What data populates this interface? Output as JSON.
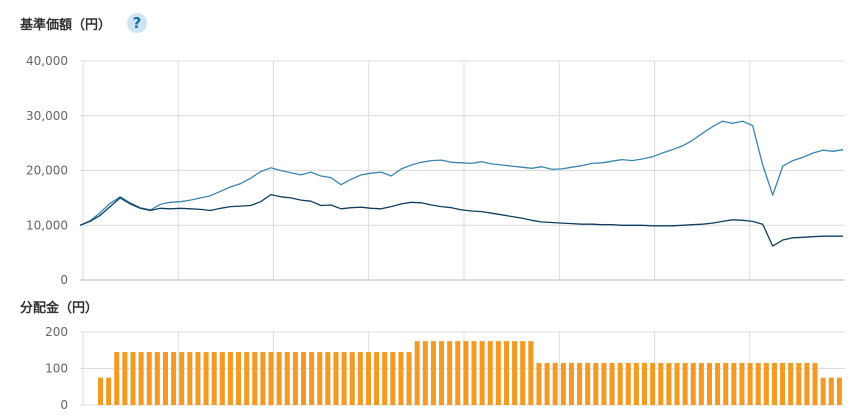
{
  "nav_panel": {
    "title": "基準価額（円）",
    "help_icon": "question-circle-icon",
    "help_symbol": "?"
  },
  "dist_panel": {
    "title": "分配金（円）"
  },
  "colors": {
    "line_series_1": "#3a86ad",
    "line_series_2": "#0f3f5f",
    "bars": "#f29a23",
    "grid": "#dcdcdc"
  },
  "chart_data": [
    {
      "type": "line",
      "title": "基準価額（円）",
      "ylim": [
        0,
        40000
      ],
      "y_ticks": [
        "0",
        "10,000",
        "20,000",
        "30,000",
        "40,000"
      ],
      "x_gridlines": 8,
      "grid": true,
      "series": [
        {
          "values": [
            10000,
            10800,
            12300,
            14000,
            15200,
            14100,
            13200,
            12800,
            13800,
            14200,
            14300,
            14600,
            15000,
            15400,
            16200,
            17000,
            17600,
            18600,
            19800,
            20500,
            20000,
            19600,
            19200,
            19700,
            19000,
            18700,
            17400,
            18400,
            19200,
            19500,
            19700,
            19000,
            20300,
            21000,
            21500,
            21800,
            21900,
            21500,
            21400,
            21300,
            21600,
            21200,
            21000,
            20800,
            20600,
            20400,
            20700,
            20200,
            20300,
            20600,
            20900,
            21300,
            21400,
            21700,
            22000,
            21800,
            22100,
            22500,
            23200,
            23800,
            24500,
            25500,
            26800,
            28000,
            29000,
            28600,
            29000,
            28200,
            21000,
            15500,
            20800,
            21800,
            22400,
            23200,
            23700,
            23500,
            23800
          ]
        },
        {
          "values": [
            10000,
            10700,
            11800,
            13400,
            15000,
            13900,
            13100,
            12700,
            13100,
            13000,
            13100,
            13000,
            12900,
            12700,
            13100,
            13400,
            13500,
            13600,
            14300,
            15600,
            15200,
            15000,
            14600,
            14400,
            13600,
            13700,
            13000,
            13200,
            13300,
            13100,
            13000,
            13400,
            13900,
            14200,
            14100,
            13700,
            13400,
            13200,
            12800,
            12600,
            12500,
            12200,
            11900,
            11600,
            11300,
            10900,
            10600,
            10500,
            10400,
            10300,
            10200,
            10200,
            10100,
            10100,
            10000,
            10000,
            10000,
            9900,
            9900,
            9900,
            10000,
            10100,
            10200,
            10400,
            10700,
            11000,
            10900,
            10700,
            10200,
            6200,
            7300,
            7700,
            7800,
            7900,
            8000,
            8000,
            8000
          ]
        }
      ]
    },
    {
      "type": "bar",
      "title": "分配金（円）",
      "ylim": [
        0,
        200
      ],
      "y_ticks": [
        "0",
        "100",
        "200"
      ],
      "grid": true,
      "values": [
        75,
        75,
        145,
        145,
        145,
        145,
        145,
        145,
        145,
        145,
        145,
        145,
        145,
        145,
        145,
        145,
        145,
        145,
        145,
        145,
        145,
        145,
        145,
        145,
        145,
        145,
        145,
        145,
        145,
        145,
        145,
        145,
        145,
        145,
        145,
        145,
        145,
        145,
        145,
        175,
        175,
        175,
        175,
        175,
        175,
        175,
        175,
        175,
        175,
        175,
        175,
        175,
        175,
        175,
        115,
        115,
        115,
        115,
        115,
        115,
        115,
        115,
        115,
        115,
        115,
        115,
        115,
        115,
        115,
        115,
        115,
        115,
        115,
        115,
        115,
        115,
        115,
        115,
        115,
        115,
        115,
        115,
        115,
        115,
        115,
        115,
        115,
        115,
        115,
        75,
        75,
        75
      ]
    }
  ]
}
